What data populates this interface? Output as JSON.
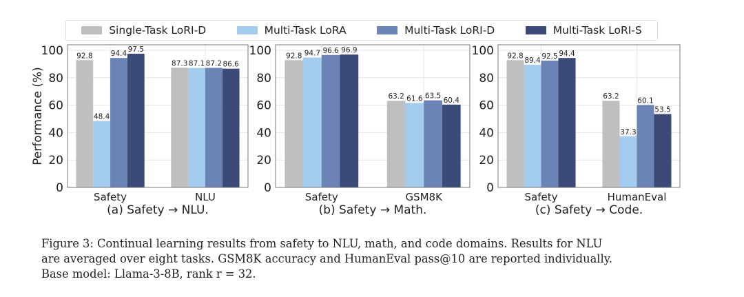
{
  "legend": [
    {
      "name": "Single-Task LoRI-D",
      "color": "#bfbfbf"
    },
    {
      "name": "Multi-Task LoRA",
      "color": "#a2cbee"
    },
    {
      "name": "Multi-Task LoRI-D",
      "color": "#6b84b5"
    },
    {
      "name": "Multi-Task LoRI-S",
      "color": "#3c4a78"
    }
  ],
  "chart_data": [
    {
      "type": "bar",
      "title": "(a) Safety → NLU.",
      "ylabel": "Performance (%)",
      "ylim": [
        0,
        100
      ],
      "yticks": [
        "0",
        "20",
        "40",
        "60",
        "80",
        "100"
      ],
      "grid": true,
      "categories": [
        "Safety",
        "NLU"
      ],
      "series": [
        {
          "name": "Single-Task LoRI-D",
          "values": [
            92.8,
            87.3
          ]
        },
        {
          "name": "Multi-Task LoRA",
          "values": [
            48.4,
            87.1
          ]
        },
        {
          "name": "Multi-Task LoRI-D",
          "values": [
            94.4,
            87.2
          ]
        },
        {
          "name": "Multi-Task LoRI-S",
          "values": [
            97.5,
            86.6
          ]
        }
      ]
    },
    {
      "type": "bar",
      "title": "(b) Safety → Math.",
      "ylabel": "",
      "ylim": [
        0,
        100
      ],
      "yticks": [
        "0",
        "20",
        "40",
        "60",
        "80",
        "100"
      ],
      "grid": true,
      "categories": [
        "Safety",
        "GSM8K"
      ],
      "series": [
        {
          "name": "Single-Task LoRI-D",
          "values": [
            92.8,
            63.2
          ]
        },
        {
          "name": "Multi-Task LoRA",
          "values": [
            94.7,
            61.6
          ]
        },
        {
          "name": "Multi-Task LoRI-D",
          "values": [
            96.6,
            63.5
          ]
        },
        {
          "name": "Multi-Task LoRI-S",
          "values": [
            96.9,
            60.4
          ]
        }
      ]
    },
    {
      "type": "bar",
      "title": "(c) Safety → Code.",
      "ylabel": "",
      "ylim": [
        0,
        100
      ],
      "yticks": [
        "0",
        "20",
        "40",
        "60",
        "80",
        "100"
      ],
      "grid": true,
      "categories": [
        "Safety",
        "HumanEval"
      ],
      "series": [
        {
          "name": "Single-Task LoRI-D",
          "values": [
            92.8,
            63.2
          ]
        },
        {
          "name": "Multi-Task LoRA",
          "values": [
            89.4,
            37.3
          ]
        },
        {
          "name": "Multi-Task LoRI-D",
          "values": [
            92.5,
            60.1
          ]
        },
        {
          "name": "Multi-Task LoRI-S",
          "values": [
            94.4,
            53.5
          ]
        }
      ]
    }
  ],
  "caption": {
    "line1": "Figure 3: Continual learning results from safety to NLU, math, and code domains. Results for NLU",
    "line2": "are averaged over eight tasks. GSM8K accuracy and HumanEval pass@10 are reported individually.",
    "line3": "Base model: Llama-3-8B, rank r = 32."
  }
}
